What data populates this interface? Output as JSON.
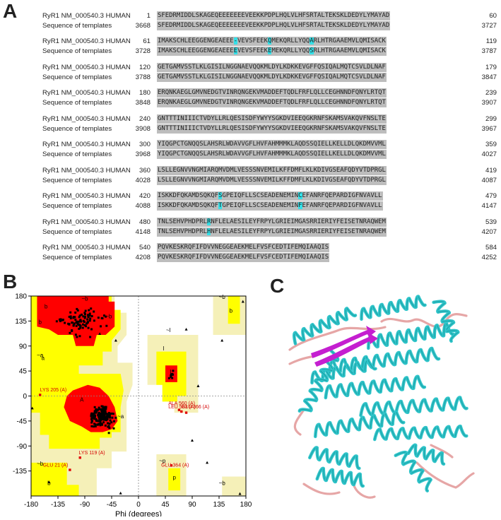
{
  "panels": {
    "a": "A",
    "b": "B",
    "c": "C"
  },
  "alignment": {
    "query_label": "RyR1 NM_000540.3 HUMAN",
    "template_label": "Sequence of templates",
    "highlight_color": "#35e0e8",
    "shade_color": "#bdbdbd",
    "blocks": [
      {
        "q_start": "1",
        "q_seq": "SFEDRMIDDLSKAGEQEEEEEEEVEEKKPDPLHQLVLHFSRTALTEKSKLDEDYLYMAYAD",
        "q_end": "60",
        "t_start": "3668",
        "t_seq": "SFEDRMIDDLSKAGEQEEEEEEEVEEKKPDPLHQLVLHFSRTALTEKSKLDEDYLYMAYAD",
        "t_end": "3727",
        "highlights": []
      },
      {
        "q_start": "61",
        "q_seq": "IMAKSCHLEEGGENGEAEEE-VEVSFEEKQMEKQRLLYQQARLHTRGAAEMVLQMISACK",
        "q_end": "119",
        "t_start": "3728",
        "t_seq": "IMAKSCHLEEGGENGEAEEEEVEVSFEEKEMEKQRLLYQQSRLHTRGAAEMVLQMISACK",
        "t_end": "3787",
        "highlights": [
          20,
          29,
          40
        ]
      },
      {
        "q_start": "120",
        "q_seq": "GETGAMVSSTLKLGISILNGGNAEVQQKMLDYLKDKKEVGFFQSIQALMQTCSVLDLNAF",
        "q_end": "179",
        "t_start": "3788",
        "t_seq": "GETGAMVSSTLKLGISILNGGNAEVQQKMLDYLKDKKEVGFFQSIQALMQTCSVLDLNAF",
        "t_end": "3847",
        "highlights": []
      },
      {
        "q_start": "180",
        "q_seq": "ERQNKAEGLGMVNEDGTVINRQNGEKVMADDEFTQDLFRFLQLLCEGHNNDFQNYLRTQT",
        "q_end": "239",
        "t_start": "3848",
        "t_seq": "ERQNKAEGLGMVNEDGTVINRQNGEKVMADDEFTQDLFRFLQLLCEGHNNDFQNYLRTQT",
        "t_end": "3907",
        "highlights": []
      },
      {
        "q_start": "240",
        "q_seq": "GNTTTINIIICTVDYLLRLQESISDFYWYYSGKDVIEEQGKRNFSKAMSVAKQVFNSLTE",
        "q_end": "299",
        "t_start": "3908",
        "t_seq": "GNTTTINIIICTVDYLLRLQESISDFYWYYSGKDVIEEQGKRNFSKAMSVAKQVFNSLTE",
        "t_end": "3967",
        "highlights": []
      },
      {
        "q_start": "300",
        "q_seq": "YIQGPCTGNQQSLAHSRLWDAVVGFLHVFAHMMMKLAQDSSQIELLKELLDLQKDMVVML",
        "q_end": "359",
        "t_start": "3968",
        "t_seq": "YIQGPCTGNQQSLAHSRLWDAVVGFLHVFAHMMMKLAQDSSQIELLKELLDLQKDMVVML",
        "t_end": "4027",
        "highlights": []
      },
      {
        "q_start": "360",
        "q_seq": "LSLLEGNVVNGMIARQMVDMLVESSSNVEMILKFFDMFLKLKDIVGSEAFQDYVTDPRGL",
        "q_end": "419",
        "t_start": "4028",
        "t_seq": "LSLLEGNVVNGMIARQMVDMLVESSSNVEMILKFFDMFLKLKDIVGSEAFQDYVTDPRGL",
        "t_end": "4087",
        "highlights": []
      },
      {
        "q_start": "420",
        "q_seq": "ISKKDFQKAMDSQKQFSGPEIQFLLSCSEADENEMINCEFANRFQEPARDIGFNVAVLL",
        "q_end": "479",
        "t_start": "4088",
        "t_seq": "ISKKDFQKAMDSQKQFTGPEIQFLLSCSEADENEMINFEFANRFQEPARDIGFNVAVLL",
        "t_end": "4147",
        "highlights": [
          16,
          37
        ]
      },
      {
        "q_start": "480",
        "q_seq": "TNLSEHVPHDPRLRNFLELAESILEYFRPYLGRIEIMGASRRIERIYFEISETNRAQWEM",
        "q_end": "539",
        "t_start": "4148",
        "t_seq": "TNLSEHVPHDPRLHNFLELAESILEYFRPYLGRIEIMGASRRIERIYFEISETNRAQWEM",
        "t_end": "4207",
        "highlights": [
          13
        ]
      },
      {
        "q_start": "540",
        "q_seq": "PQVKESKRQFIFDVVNEGGEAEKMELFVSFCEDTIFEMQIAAQIS",
        "q_end": "584",
        "t_start": "4208",
        "t_seq": "PQVKESKRQFIFDVVNEGGEAEKMELFVSFCEDTIFEMQIAAQIS",
        "t_end": "4252",
        "highlights": []
      }
    ]
  },
  "chart_data": {
    "type": "scatter",
    "xlabel": "Phi (degrees)",
    "xlim": [
      -180,
      180
    ],
    "ylim": [
      -180,
      180
    ],
    "xticks": [
      "-180",
      "-135",
      "-90",
      "-45",
      "0",
      "45",
      "90",
      "135",
      "180"
    ],
    "yticks": [
      "180",
      "135",
      "90",
      "45",
      "0",
      "-45",
      "-90",
      "-135"
    ],
    "region_labels": [
      {
        "text": "b",
        "x": -155,
        "y": 158
      },
      {
        "text": "b",
        "x": -165,
        "y": 130
      },
      {
        "text": "~b",
        "x": -90,
        "y": 172
      },
      {
        "text": "~b",
        "x": -50,
        "y": 140
      },
      {
        "text": "a",
        "x": -160,
        "y": 65
      },
      {
        "text": "~a",
        "x": -165,
        "y": 70
      },
      {
        "text": "A",
        "x": -95,
        "y": -10
      },
      {
        "text": "~a",
        "x": -30,
        "y": -40
      },
      {
        "text": "~l",
        "x": 50,
        "y": 115
      },
      {
        "text": "l",
        "x": 42,
        "y": 82
      },
      {
        "text": "L",
        "x": 55,
        "y": 40
      },
      {
        "text": "~b",
        "x": -165,
        "y": -125
      },
      {
        "text": "b",
        "x": -150,
        "y": -160
      },
      {
        "text": "~p",
        "x": 40,
        "y": -120
      },
      {
        "text": "p",
        "x": 60,
        "y": -150
      },
      {
        "text": "~b",
        "x": 140,
        "y": 175
      },
      {
        "text": "b",
        "x": 155,
        "y": 150
      },
      {
        "text": "~b",
        "x": 140,
        "y": -160
      }
    ],
    "outlier_labels": [
      {
        "text": "LYS 205 (A)",
        "x": -165,
        "y": 8
      },
      {
        "text": "ALA 560 (A)",
        "x": 50,
        "y": -16
      },
      {
        "text": "LEU 583 (A)",
        "x": 50,
        "y": -22
      },
      {
        "text": "GLU 366 (A)",
        "x": 72,
        "y": -22
      },
      {
        "text": "LYS 119 (A)",
        "x": -100,
        "y": -105
      },
      {
        "text": "GLU 21 (A)",
        "x": -160,
        "y": -127
      },
      {
        "text": "GLU 364 (A)",
        "x": 38,
        "y": -127
      }
    ],
    "outlier_points": [
      [
        -165,
        2
      ],
      [
        -98,
        -111
      ],
      [
        -115,
        -133
      ],
      [
        68,
        -25
      ],
      [
        72,
        -28
      ],
      [
        80,
        -30
      ],
      [
        55,
        -125
      ]
    ],
    "glycine_points": [
      [
        -178,
        -22
      ],
      [
        100,
        18
      ],
      [
        90,
        -80
      ],
      [
        115,
        -120
      ],
      [
        -30,
        -175
      ],
      [
        170,
        -176
      ],
      [
        175,
        170
      ],
      [
        -38,
        100
      ],
      [
        140,
        100
      ],
      [
        80,
        120
      ],
      [
        -65,
        112
      ],
      [
        -150,
        -155
      ]
    ],
    "point_groups": [
      {
        "region": "alpha",
        "cx": -62,
        "cy": -38,
        "sx": 16,
        "sy": 14,
        "n": 165
      },
      {
        "region": "beta",
        "cx": -95,
        "cy": 135,
        "sx": 30,
        "sy": 20,
        "n": 90
      },
      {
        "region": "left",
        "cx": 55,
        "cy": 40,
        "sx": 5,
        "sy": 8,
        "n": 8
      }
    ]
  },
  "structure": {
    "helix_color": "#2ec4c9",
    "sheet_color": "#c41fd0",
    "loop_color": "#e6a6a6"
  }
}
